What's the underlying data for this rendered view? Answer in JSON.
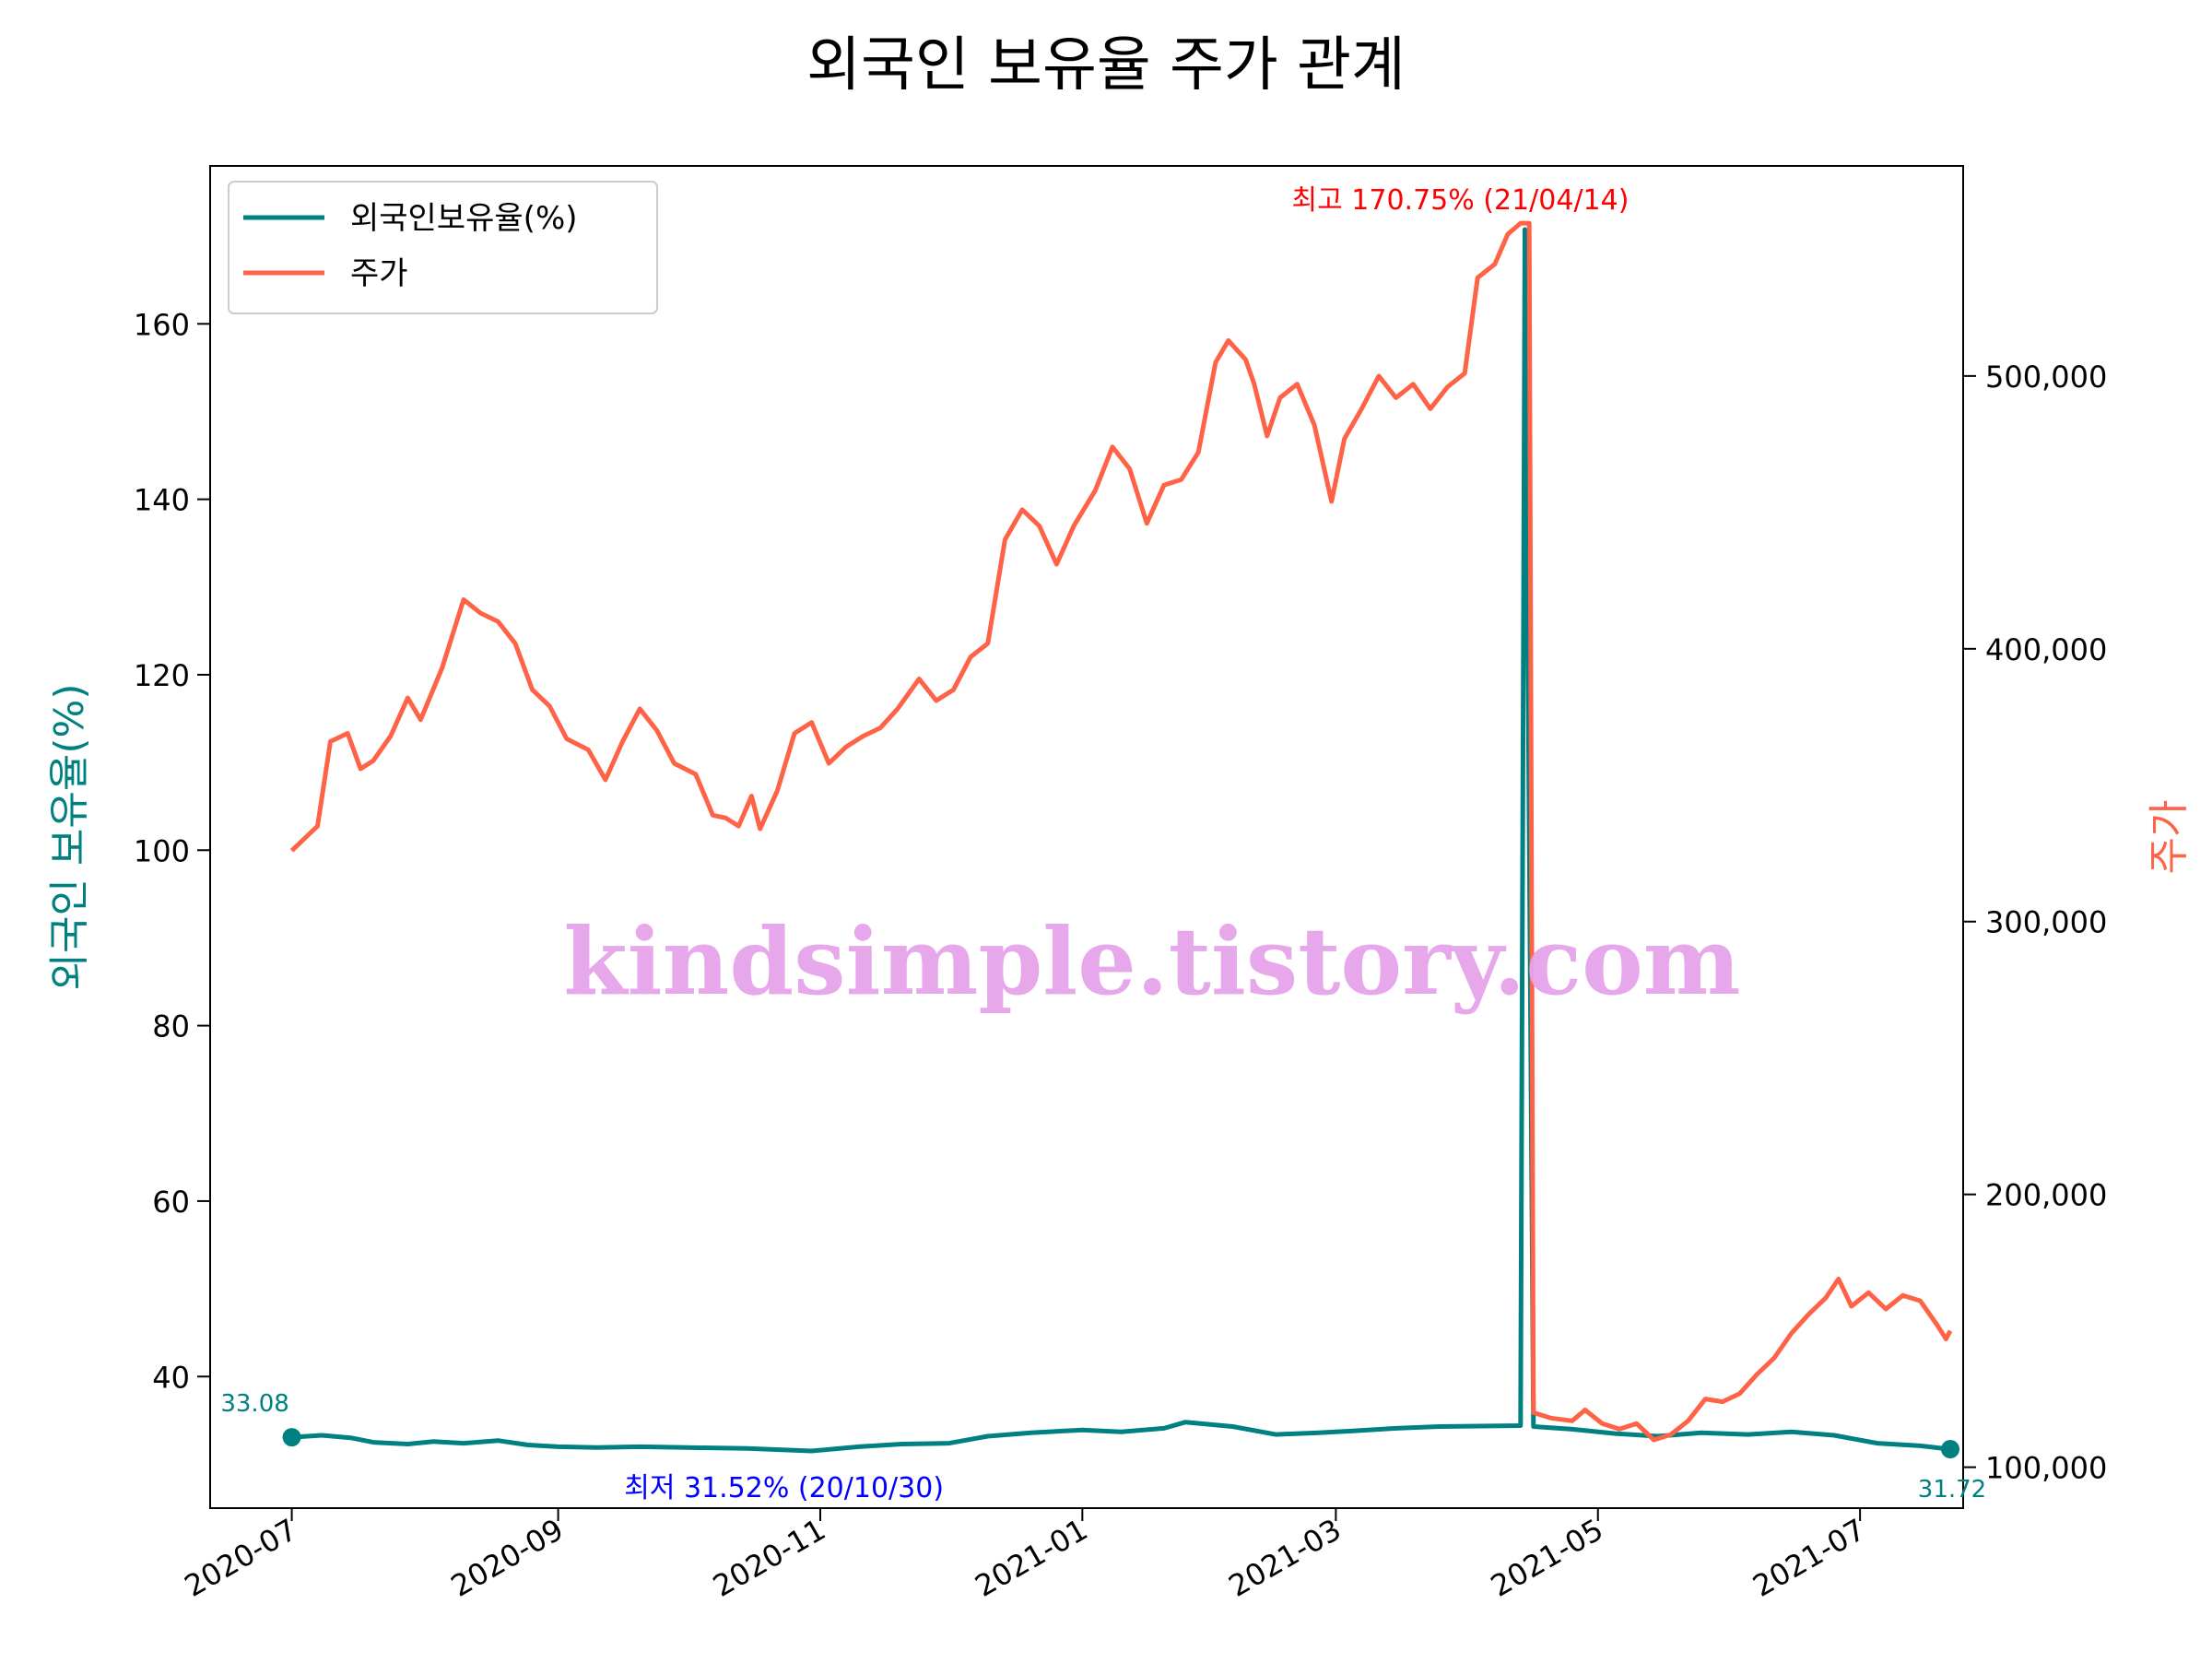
{
  "chart_data": {
    "type": "line",
    "title": "외국인 보유율 주가 관계",
    "xlabel": "",
    "ylabel": "외국인 보유율(%)",
    "y2label": "주가",
    "x_ticks": [
      "2020-07",
      "2020-09",
      "2020-11",
      "2021-01",
      "2021-03",
      "2021-05",
      "2021-07"
    ],
    "x_range": [
      "2020-06-12",
      "2021-07-25"
    ],
    "ylim": [
      25,
      178
    ],
    "y_ticks": [
      40,
      60,
      80,
      100,
      120,
      140,
      160
    ],
    "y2lim": [
      85000,
      577000
    ],
    "y2_ticks": [
      100000,
      200000,
      300000,
      400000,
      500000
    ],
    "y2_tick_labels": [
      "100,000",
      "200,000",
      "300,000",
      "400,000",
      "500,000"
    ],
    "legend_position": "top-left",
    "grid": false,
    "colors": {
      "foreign": "#008080",
      "price": "#ff6347",
      "max": "#ff0000",
      "min": "#0000ff",
      "watermark": "#e6a3ea"
    },
    "series": [
      {
        "name": "외국인보유율(%)",
        "axis": "left",
        "points": [
          [
            "2020-07-01",
            33.08
          ],
          [
            "2020-07-08",
            33.3
          ],
          [
            "2020-07-15",
            33.0
          ],
          [
            "2020-07-20",
            32.5
          ],
          [
            "2020-07-28",
            32.3
          ],
          [
            "2020-08-03",
            32.6
          ],
          [
            "2020-08-10",
            32.4
          ],
          [
            "2020-08-18",
            32.7
          ],
          [
            "2020-08-25",
            32.2
          ],
          [
            "2020-09-01",
            32.0
          ],
          [
            "2020-09-10",
            31.9
          ],
          [
            "2020-09-20",
            32.0
          ],
          [
            "2020-10-01",
            31.9
          ],
          [
            "2020-10-15",
            31.8
          ],
          [
            "2020-10-30",
            31.52
          ],
          [
            "2020-11-10",
            32.0
          ],
          [
            "2020-11-20",
            32.3
          ],
          [
            "2020-12-01",
            32.4
          ],
          [
            "2020-12-10",
            33.2
          ],
          [
            "2020-12-20",
            33.6
          ],
          [
            "2021-01-01",
            33.9
          ],
          [
            "2021-01-10",
            33.7
          ],
          [
            "2021-01-20",
            34.1
          ],
          [
            "2021-01-25",
            34.8
          ],
          [
            "2021-02-05",
            34.3
          ],
          [
            "2021-02-15",
            33.4
          ],
          [
            "2021-02-25",
            33.6
          ],
          [
            "2021-03-05",
            33.8
          ],
          [
            "2021-03-15",
            34.1
          ],
          [
            "2021-03-25",
            34.3
          ],
          [
            "2021-04-13",
            34.4
          ],
          [
            "2021-04-14",
            170.75
          ],
          [
            "2021-04-16",
            34.3
          ],
          [
            "2021-04-25",
            34.0
          ],
          [
            "2021-05-05",
            33.5
          ],
          [
            "2021-05-15",
            33.2
          ],
          [
            "2021-05-25",
            33.6
          ],
          [
            "2021-06-05",
            33.4
          ],
          [
            "2021-06-15",
            33.7
          ],
          [
            "2021-06-25",
            33.3
          ],
          [
            "2021-07-05",
            32.4
          ],
          [
            "2021-07-15",
            32.1
          ],
          [
            "2021-07-22",
            31.72
          ]
        ]
      },
      {
        "name": "주가",
        "axis": "right",
        "points": [
          [
            "2020-07-01",
            326000
          ],
          [
            "2020-07-05",
            332000
          ],
          [
            "2020-07-07",
            335000
          ],
          [
            "2020-07-10",
            366000
          ],
          [
            "2020-07-14",
            369000
          ],
          [
            "2020-07-17",
            356000
          ],
          [
            "2020-07-20",
            359000
          ],
          [
            "2020-07-24",
            368000
          ],
          [
            "2020-07-28",
            382000
          ],
          [
            "2020-07-31",
            374000
          ],
          [
            "2020-08-05",
            393000
          ],
          [
            "2020-08-10",
            418000
          ],
          [
            "2020-08-14",
            413000
          ],
          [
            "2020-08-18",
            410000
          ],
          [
            "2020-08-22",
            402000
          ],
          [
            "2020-08-26",
            385000
          ],
          [
            "2020-08-30",
            379000
          ],
          [
            "2020-09-03",
            367000
          ],
          [
            "2020-09-08",
            363000
          ],
          [
            "2020-09-12",
            352000
          ],
          [
            "2020-09-16",
            366000
          ],
          [
            "2020-09-20",
            378000
          ],
          [
            "2020-09-24",
            370000
          ],
          [
            "2020-09-28",
            358000
          ],
          [
            "2020-10-03",
            354000
          ],
          [
            "2020-10-07",
            339000
          ],
          [
            "2020-10-10",
            338000
          ],
          [
            "2020-10-13",
            335000
          ],
          [
            "2020-10-16",
            346000
          ],
          [
            "2020-10-18",
            334000
          ],
          [
            "2020-10-22",
            348000
          ],
          [
            "2020-10-26",
            369000
          ],
          [
            "2020-10-30",
            373000
          ],
          [
            "2020-11-03",
            358000
          ],
          [
            "2020-11-07",
            364000
          ],
          [
            "2020-11-11",
            368000
          ],
          [
            "2020-11-15",
            371000
          ],
          [
            "2020-11-19",
            378000
          ],
          [
            "2020-11-24",
            389000
          ],
          [
            "2020-11-28",
            381000
          ],
          [
            "2020-12-02",
            385000
          ],
          [
            "2020-12-06",
            397000
          ],
          [
            "2020-12-10",
            402000
          ],
          [
            "2020-12-14",
            440000
          ],
          [
            "2020-12-18",
            451000
          ],
          [
            "2020-12-22",
            445000
          ],
          [
            "2020-12-26",
            431000
          ],
          [
            "2020-12-30",
            445000
          ],
          [
            "2021-01-04",
            458000
          ],
          [
            "2021-01-08",
            474000
          ],
          [
            "2021-01-12",
            466000
          ],
          [
            "2021-01-16",
            446000
          ],
          [
            "2021-01-20",
            460000
          ],
          [
            "2021-01-24",
            462000
          ],
          [
            "2021-01-28",
            472000
          ],
          [
            "2021-02-01",
            505000
          ],
          [
            "2021-02-04",
            513000
          ],
          [
            "2021-02-08",
            506000
          ],
          [
            "2021-02-10",
            497000
          ],
          [
            "2021-02-13",
            478000
          ],
          [
            "2021-02-16",
            492000
          ],
          [
            "2021-02-20",
            497000
          ],
          [
            "2021-02-24",
            482000
          ],
          [
            "2021-02-28",
            454000
          ],
          [
            "2021-03-03",
            477000
          ],
          [
            "2021-03-07",
            488000
          ],
          [
            "2021-03-11",
            500000
          ],
          [
            "2021-03-15",
            492000
          ],
          [
            "2021-03-19",
            497000
          ],
          [
            "2021-03-23",
            488000
          ],
          [
            "2021-03-27",
            496000
          ],
          [
            "2021-03-31",
            501000
          ],
          [
            "2021-04-03",
            536000
          ],
          [
            "2021-04-07",
            541000
          ],
          [
            "2021-04-10",
            552000
          ],
          [
            "2021-04-13",
            556000
          ],
          [
            "2021-04-15",
            556000
          ],
          [
            "2021-04-16",
            120000
          ],
          [
            "2021-04-20",
            118000
          ],
          [
            "2021-04-25",
            117000
          ],
          [
            "2021-04-28",
            121000
          ],
          [
            "2021-05-02",
            116000
          ],
          [
            "2021-05-06",
            114000
          ],
          [
            "2021-05-10",
            116000
          ],
          [
            "2021-05-14",
            110000
          ],
          [
            "2021-05-18",
            112000
          ],
          [
            "2021-05-22",
            117000
          ],
          [
            "2021-05-26",
            125000
          ],
          [
            "2021-05-30",
            124000
          ],
          [
            "2021-06-03",
            127000
          ],
          [
            "2021-06-07",
            134000
          ],
          [
            "2021-06-11",
            140000
          ],
          [
            "2021-06-15",
            149000
          ],
          [
            "2021-06-19",
            156000
          ],
          [
            "2021-06-23",
            162000
          ],
          [
            "2021-06-26",
            169000
          ],
          [
            "2021-06-29",
            159000
          ],
          [
            "2021-07-03",
            164000
          ],
          [
            "2021-07-07",
            158000
          ],
          [
            "2021-07-11",
            163000
          ],
          [
            "2021-07-15",
            161000
          ],
          [
            "2021-07-19",
            152000
          ],
          [
            "2021-07-21",
            147000
          ],
          [
            "2021-07-22",
            150000
          ]
        ]
      }
    ],
    "annotations": [
      {
        "text": "최고 170.75% (21/04/14)",
        "x": "2021-04-14",
        "y": 170.75,
        "color": "max"
      },
      {
        "text": "최저 31.52% (20/10/30)",
        "x": "2020-10-30",
        "y": 31.52,
        "color": "min"
      },
      {
        "text": "33.08",
        "x": "2020-07-01",
        "y": 33.08,
        "color": "foreign"
      },
      {
        "text": "31.72",
        "x": "2021-07-22",
        "y": 31.72,
        "color": "foreign"
      }
    ],
    "watermark": "kindsimple.tistory.com"
  }
}
